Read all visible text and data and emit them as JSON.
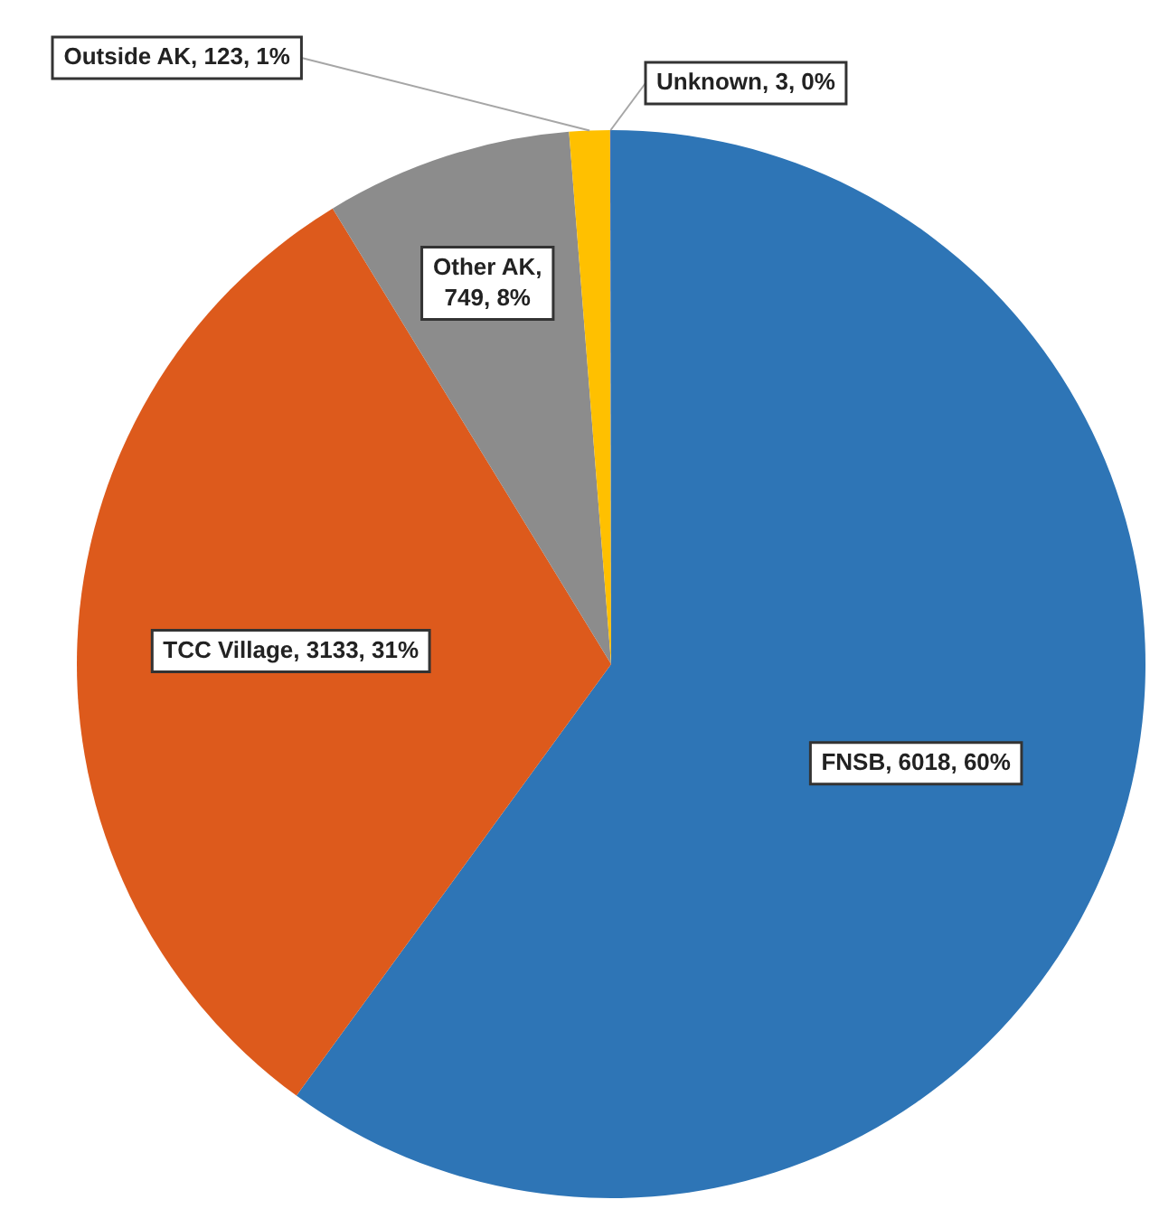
{
  "chart_data": {
    "type": "pie",
    "categories": [
      "FNSB, 6018, 60%",
      "TCC Village, 3133, 31%",
      "Other AK, 749, 8%",
      "Outside AK, 123, 1%",
      "Unknown, 3, 0%"
    ],
    "values": [
      6018,
      3133,
      749,
      123,
      3
    ],
    "colors": [
      "#2e75b6",
      "#dd5a1c",
      "#8c8c8c",
      "#ffc000",
      "#4472c4"
    ],
    "legend": false
  }
}
